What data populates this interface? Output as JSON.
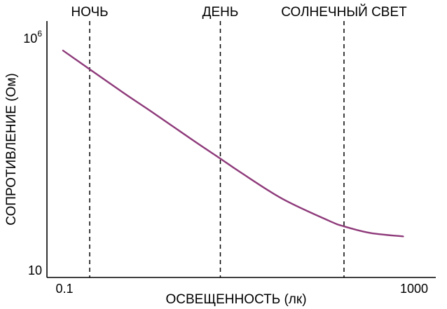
{
  "chart_data": {
    "type": "line",
    "title": "",
    "xlabel": "ОСВЕЩЕННОСТЬ (лк)",
    "ylabel": "СОПРОТИВЛЕНИЕ (Ом)",
    "x_scale": "log",
    "y_scale": "log",
    "xlim": [
      0.1,
      1000
    ],
    "ylim": [
      10,
      1000000
    ],
    "x_tick_labels": {
      "min": "0.1",
      "max": "1000"
    },
    "y_tick_labels": {
      "min_base": "10",
      "max_base": "10",
      "max_exp": "6"
    },
    "grid": false,
    "legend": "none",
    "regions": [
      {
        "label": "НОЧЬ",
        "x": 0.2
      },
      {
        "label": "ДЕНЬ",
        "x": 6
      },
      {
        "label": "СОЛНЕЧНЫЙ СВЕТ",
        "x": 150
      }
    ],
    "series": [
      {
        "color": "#8e3a7a",
        "points": [
          [
            0.1,
            500000
          ],
          [
            0.2,
            200000
          ],
          [
            0.5,
            60000
          ],
          [
            1,
            25000
          ],
          [
            3,
            6000
          ],
          [
            6,
            2500
          ],
          [
            10,
            1300
          ],
          [
            30,
            350
          ],
          [
            100,
            120
          ],
          [
            150,
            90
          ],
          [
            300,
            65
          ],
          [
            700,
            55
          ]
        ]
      }
    ]
  }
}
